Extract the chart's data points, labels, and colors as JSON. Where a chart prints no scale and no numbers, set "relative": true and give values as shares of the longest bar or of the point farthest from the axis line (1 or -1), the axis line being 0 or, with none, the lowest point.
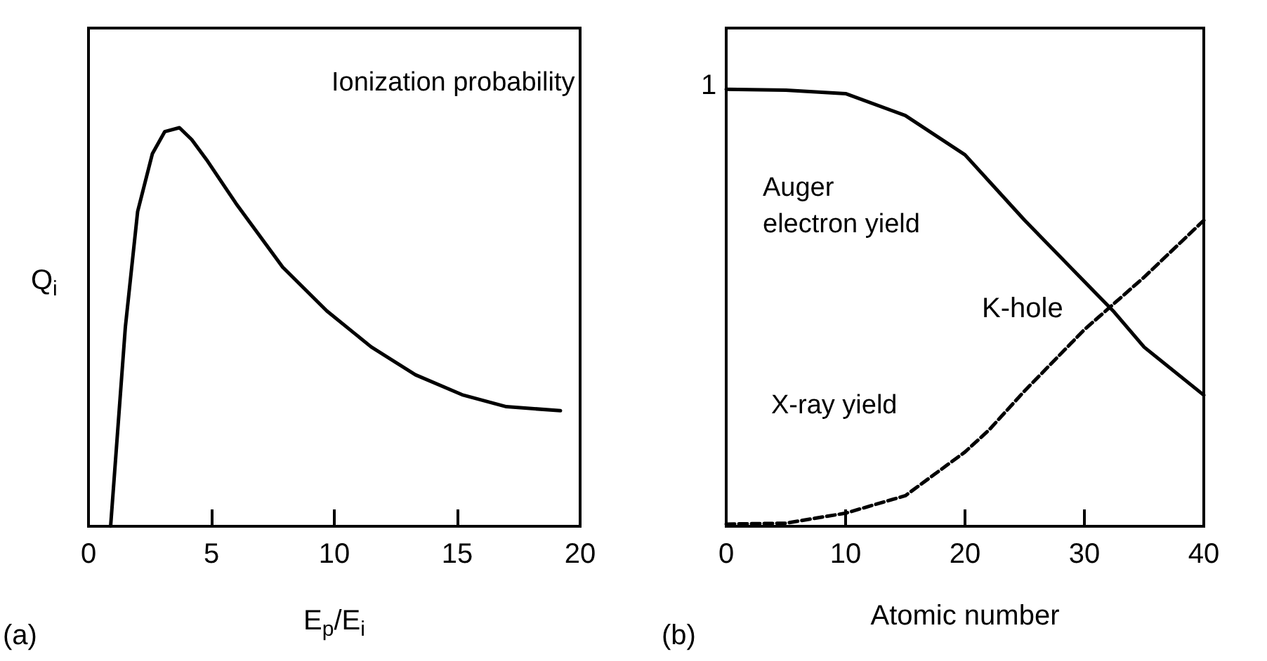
{
  "chart_data": [
    {
      "type": "line",
      "xlabel": "E$_{p}$/E$_{i}$",
      "ylabel": "Q$_{i}$",
      "relative": true,
      "xlim": [
        0,
        20
      ],
      "xticks": [
        0,
        5,
        10,
        15,
        20
      ],
      "grid": false,
      "legend": false,
      "marker": "none",
      "annotations": [
        "(a)"
      ],
      "series": [
        {
          "name": "Ionization probability",
          "color": "#000000",
          "line_style": "solid",
          "x": [
            0.9,
            1.5,
            2.0,
            2.6,
            3.1,
            3.7,
            4.2,
            4.8,
            6.0,
            7.9,
            9.7,
            11.5,
            13.3,
            15.2,
            17.0,
            19.2
          ],
          "values": [
            0,
            0.5,
            0.79,
            0.935,
            0.99,
            1,
            0.97,
            0.92,
            0.81,
            0.65,
            0.54,
            0.45,
            0.38,
            0.33,
            0.3,
            0.29
          ]
        }
      ]
    },
    {
      "type": "line",
      "xlabel": "Atomic number",
      "relative": true,
      "xlim": [
        0,
        40
      ],
      "xticks": [
        0,
        10,
        20,
        30,
        40
      ],
      "grid": false,
      "legend": false,
      "marker": "none",
      "annotations": [
        "(b)",
        "1",
        "K-hole"
      ],
      "series": [
        {
          "name": "Auger electron yield",
          "color": "#000000",
          "line_style": "solid",
          "x": [
            0,
            5,
            10,
            15,
            20,
            22,
            25,
            30,
            32.5,
            35,
            40
          ],
          "values": [
            1,
            0.998,
            0.99,
            0.94,
            0.85,
            0.79,
            0.7,
            0.56,
            0.49,
            0.41,
            0.3
          ]
        },
        {
          "name": "X-ray yield",
          "color": "#000000",
          "line_style": "dashed",
          "x": [
            0,
            5,
            10,
            15,
            20,
            22,
            25,
            30,
            32.5,
            35,
            40
          ],
          "values": [
            0.005,
            0.007,
            0.03,
            0.07,
            0.17,
            0.22,
            0.31,
            0.45,
            0.51,
            0.57,
            0.7
          ]
        }
      ]
    }
  ]
}
